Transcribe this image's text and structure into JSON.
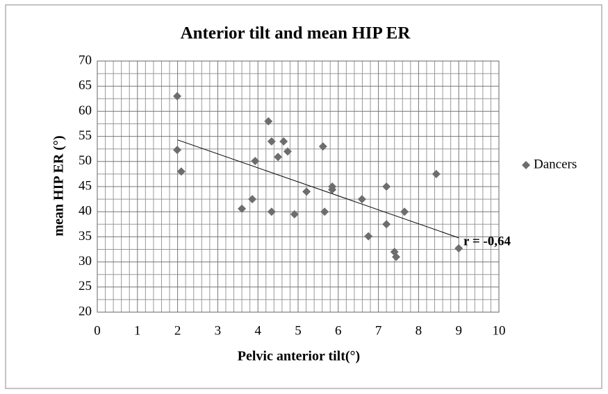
{
  "chart_data": {
    "type": "scatter",
    "title": "Anterior tilt and mean HIP ER",
    "x_label": "Pelvic anterior tilt(°)",
    "y_label": "mean HIP ER (°)",
    "series": [
      {
        "name": "Dancers",
        "color": "#6d6d6d",
        "x": [
          1.99,
          1.99,
          2.09,
          3.93,
          3.6,
          3.86,
          4.26,
          4.34,
          4.34,
          4.5,
          4.64,
          4.74,
          4.91,
          5.21,
          5.62,
          5.66,
          5.85,
          5.85,
          6.59,
          6.75,
          7.2,
          7.2,
          7.4,
          7.44,
          7.65,
          8.44,
          9.0
        ],
        "values": [
          63.0,
          52.3,
          48.0,
          50.1,
          40.6,
          42.5,
          58.0,
          54.0,
          40.0,
          50.9,
          54.0,
          52.0,
          39.5,
          44.0,
          53.0,
          40.0,
          45.0,
          44.4,
          42.5,
          35.1,
          45.0,
          37.5,
          32.0,
          31.0,
          40.0,
          47.5,
          32.7
        ]
      }
    ],
    "trendline": {
      "x": [
        2,
        9
      ],
      "values": [
        54.3,
        34.8
      ]
    },
    "annotation": "r = -0,64",
    "xlim": [
      0,
      10
    ],
    "xticks": [
      0,
      1,
      2,
      3,
      4,
      5,
      6,
      7,
      8,
      9,
      10
    ],
    "ylim": [
      20,
      70
    ],
    "yticks": [
      20,
      25,
      30,
      35,
      40,
      45,
      50,
      55,
      60,
      65,
      70
    ],
    "grid": true,
    "legend": "right"
  }
}
